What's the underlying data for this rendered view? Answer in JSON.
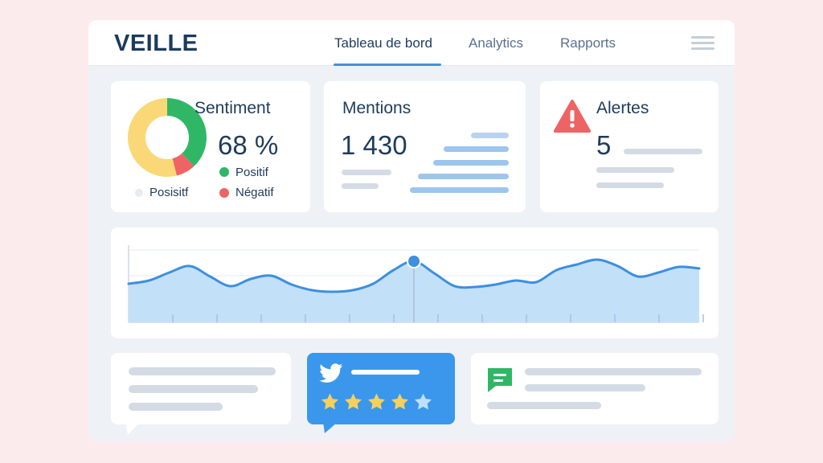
{
  "app": {
    "title": "VEILLE"
  },
  "nav": {
    "tabs": [
      {
        "label": "Tableau de bord",
        "active": true
      },
      {
        "label": "Analytics",
        "active": false
      },
      {
        "label": "Rapports",
        "active": false
      }
    ],
    "menu_icon": "hamburger-menu-icon"
  },
  "sentiment": {
    "title": "Sentiment",
    "value": "68 %",
    "legend": [
      {
        "label": "Positif",
        "color": "#2fb766"
      },
      {
        "label": "Négatif",
        "color": "#ee6464"
      },
      {
        "label": "Posisitf",
        "color": "#e8ecf0"
      }
    ],
    "donut": [
      {
        "share": 0.38,
        "color": "#2fb766"
      },
      {
        "share": 0.08,
        "color": "#ee6464"
      },
      {
        "share": 0.54,
        "color": "#fad877"
      }
    ]
  },
  "mentions": {
    "title": "Mentions",
    "value": "1 430"
  },
  "alerts": {
    "title": "Alertes",
    "value": "5",
    "icon": "warning-triangle-icon",
    "color": "#ee6464"
  },
  "trend": {
    "line_color": "#3d8fdf",
    "fill_color": "#c3e0f9",
    "points": [
      [
        0,
        42
      ],
      [
        3,
        38
      ],
      [
        6,
        28
      ],
      [
        9,
        20
      ],
      [
        12,
        33
      ],
      [
        15,
        45
      ],
      [
        18,
        36
      ],
      [
        21,
        32
      ],
      [
        24,
        43
      ],
      [
        27,
        50
      ],
      [
        30,
        52
      ],
      [
        33,
        50
      ],
      [
        36,
        42
      ],
      [
        39,
        25
      ],
      [
        42,
        14
      ],
      [
        45,
        29
      ],
      [
        48,
        45
      ],
      [
        51,
        46
      ],
      [
        54,
        43
      ],
      [
        57,
        38
      ],
      [
        60,
        40
      ],
      [
        63,
        25
      ],
      [
        66,
        18
      ],
      [
        69,
        12
      ],
      [
        72,
        20
      ],
      [
        75,
        33
      ],
      [
        78,
        28
      ],
      [
        81,
        21
      ],
      [
        84,
        23
      ]
    ],
    "highlight_index": 14
  },
  "posts": {
    "twitter": {
      "icon": "twitter-bird-icon",
      "rating": 4,
      "max": 5
    },
    "message": {
      "icon": "chat-bubble-icon",
      "color": "#2fb766"
    }
  },
  "colors": {
    "accent": "#4a8fd4",
    "brand": "#1c3a5e"
  }
}
